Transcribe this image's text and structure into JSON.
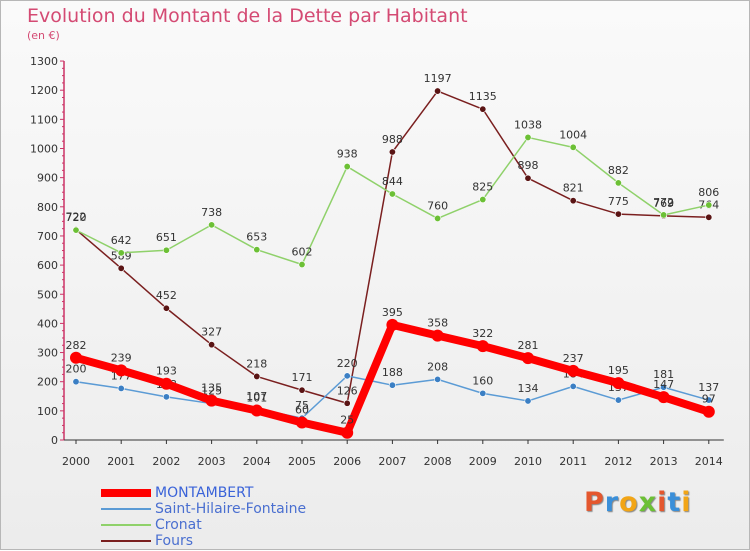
{
  "title": "Evolution du Montant de la Dette par Habitant",
  "subtitle": "(en €)",
  "logo_text": "Proxiti",
  "chart_data": {
    "type": "line",
    "title": "Evolution du Montant de la Dette par Habitant",
    "ylabel": "(en €)",
    "xlabel": "",
    "x": [
      "2000",
      "2001",
      "2002",
      "2003",
      "2004",
      "2005",
      "2006",
      "2007",
      "2008",
      "2009",
      "2010",
      "2011",
      "2012",
      "2013",
      "2014"
    ],
    "ylim": [
      0,
      1300
    ],
    "yticks": [
      0,
      100,
      200,
      300,
      400,
      500,
      600,
      700,
      800,
      900,
      1000,
      1100,
      1200,
      1300
    ],
    "grid": false,
    "legend_position": "bottom-left",
    "series": [
      {
        "name": "MONTAMBERT",
        "color": "#ff0000",
        "values": [
          282,
          239,
          193,
          135,
          101,
          60,
          25,
          395,
          358,
          322,
          281,
          237,
          195,
          147,
          97
        ]
      },
      {
        "name": "Saint-Hilaire-Fontaine",
        "color": "#5b9bd5",
        "values": [
          200,
          177,
          148,
          125,
          107,
          75,
          220,
          188,
          208,
          160,
          134,
          184,
          137,
          181,
          137
        ]
      },
      {
        "name": "Cronat",
        "color": "#8fd16a",
        "values": [
          720,
          642,
          651,
          738,
          653,
          602,
          938,
          844,
          760,
          825,
          1038,
          1004,
          882,
          772,
          806
        ]
      },
      {
        "name": "Fours",
        "color": "#7a1f1f",
        "values": [
          722,
          589,
          452,
          327,
          218,
          171,
          126,
          988,
          1197,
          1135,
          898,
          821,
          775,
          769,
          764
        ]
      }
    ]
  }
}
